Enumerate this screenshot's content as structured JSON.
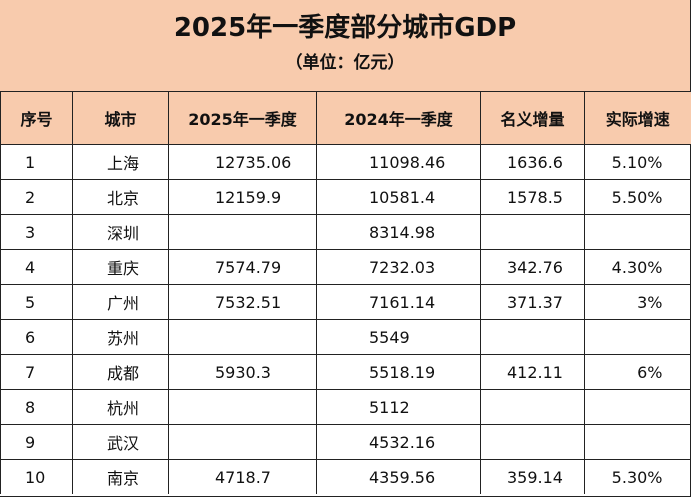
{
  "title": "2025年一季度部分城市GDP",
  "subtitle": "（单位：亿元）",
  "columns": [
    "序号",
    "城市",
    "2025年一季度",
    "2024年一季度",
    "名义增量",
    "实际增速"
  ],
  "rows": [
    {
      "index": "1",
      "city": "上海",
      "q1_2025": "12735.06",
      "q1_2024": "11098.46",
      "nominal_increase": "1636.6",
      "real_growth": "5.10%"
    },
    {
      "index": "2",
      "city": "北京",
      "q1_2025": "12159.9",
      "q1_2024": "10581.4",
      "nominal_increase": "1578.5",
      "real_growth": "5.50%"
    },
    {
      "index": "3",
      "city": "深圳",
      "q1_2025": "",
      "q1_2024": "8314.98",
      "nominal_increase": "",
      "real_growth": ""
    },
    {
      "index": "4",
      "city": "重庆",
      "q1_2025": "7574.79",
      "q1_2024": "7232.03",
      "nominal_increase": "342.76",
      "real_growth": "4.30%"
    },
    {
      "index": "5",
      "city": "广州",
      "q1_2025": "7532.51",
      "q1_2024": "7161.14",
      "nominal_increase": "371.37",
      "real_growth": "3%"
    },
    {
      "index": "6",
      "city": "苏州",
      "q1_2025": "",
      "q1_2024": "5549",
      "nominal_increase": "",
      "real_growth": ""
    },
    {
      "index": "7",
      "city": "成都",
      "q1_2025": "5930.3",
      "q1_2024": "5518.19",
      "nominal_increase": "412.11",
      "real_growth": "6%"
    },
    {
      "index": "8",
      "city": "杭州",
      "q1_2025": "",
      "q1_2024": "5112",
      "nominal_increase": "",
      "real_growth": ""
    },
    {
      "index": "9",
      "city": "武汉",
      "q1_2025": "",
      "q1_2024": "4532.16",
      "nominal_increase": "",
      "real_growth": ""
    },
    {
      "index": "10",
      "city": "南京",
      "q1_2025": "4718.7",
      "q1_2024": "4359.56",
      "nominal_increase": "359.14",
      "real_growth": "5.30%"
    }
  ],
  "colors": {
    "header_fill": "#f8cbad",
    "grid_line": "#222222",
    "text": "#111111"
  }
}
